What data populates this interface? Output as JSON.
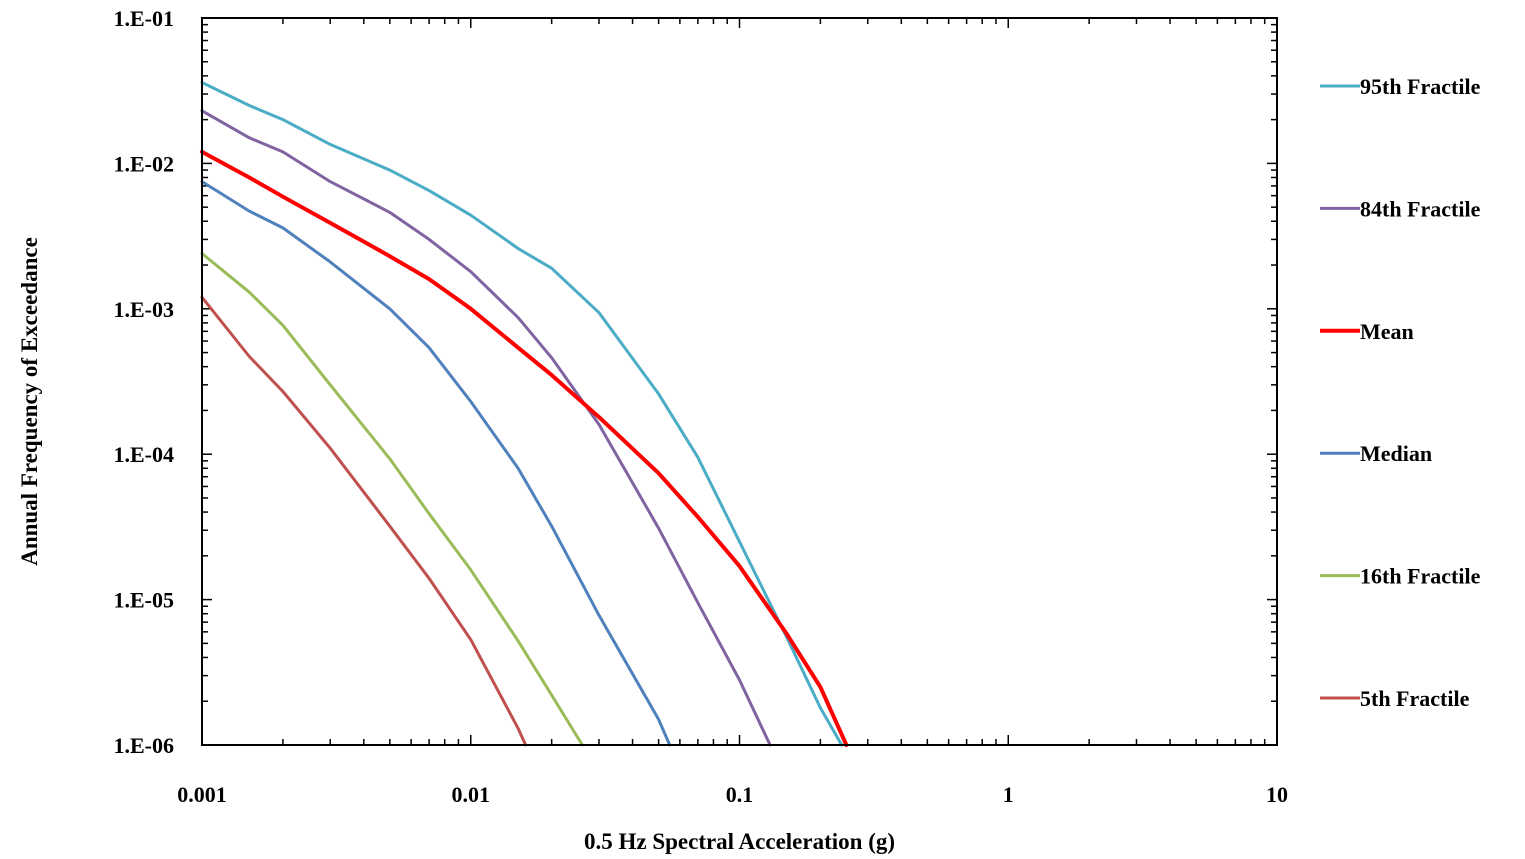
{
  "chart_data": {
    "type": "line",
    "x_scale": "log",
    "y_scale": "log",
    "xlim": [
      0.001,
      10
    ],
    "ylim": [
      1e-06,
      0.1
    ],
    "x_ticks": [
      "0.001",
      "0.01",
      "0.1",
      "1",
      "10"
    ],
    "y_ticks": [
      "1.E-06",
      "1.E-05",
      "1.E-04",
      "1.E-03",
      "1.E-02",
      "1.E-01"
    ],
    "xlabel": "0.5 Hz Spectral Acceleration (g)",
    "ylabel": "Annual Frequency of Exceedance",
    "legend_position": "right",
    "series": [
      {
        "name": "95th Fractile",
        "color": "#4BACC6",
        "width": 3,
        "x": [
          0.001,
          0.0015,
          0.002,
          0.003,
          0.005,
          0.007,
          0.01,
          0.015,
          0.02,
          0.03,
          0.05,
          0.07,
          0.1,
          0.15,
          0.2,
          0.24
        ],
        "y": [
          0.036,
          0.025,
          0.02,
          0.0135,
          0.009,
          0.0065,
          0.0044,
          0.0026,
          0.0019,
          0.00094,
          0.00026,
          9.5e-05,
          2.5e-05,
          5.5e-06,
          1.8e-06,
          1e-06
        ]
      },
      {
        "name": "84th Fractile",
        "color": "#8064A2",
        "width": 3,
        "x": [
          0.001,
          0.0015,
          0.002,
          0.003,
          0.005,
          0.007,
          0.01,
          0.015,
          0.02,
          0.03,
          0.05,
          0.07,
          0.1,
          0.13
        ],
        "y": [
          0.023,
          0.015,
          0.012,
          0.0075,
          0.0046,
          0.003,
          0.0018,
          0.00087,
          0.00046,
          0.00016,
          3.1e-05,
          9.5e-06,
          2.8e-06,
          1e-06
        ]
      },
      {
        "name": "Mean",
        "color": "#FF0000",
        "width": 4,
        "x": [
          0.001,
          0.0015,
          0.002,
          0.003,
          0.005,
          0.007,
          0.01,
          0.015,
          0.02,
          0.03,
          0.05,
          0.07,
          0.1,
          0.15,
          0.2,
          0.25
        ],
        "y": [
          0.012,
          0.008,
          0.0059,
          0.0039,
          0.0023,
          0.0016,
          0.001,
          0.00054,
          0.00035,
          0.00018,
          7.4e-05,
          3.7e-05,
          1.7e-05,
          5.8e-06,
          2.5e-06,
          1e-06
        ]
      },
      {
        "name": "Median",
        "color": "#4F81BD",
        "width": 3,
        "x": [
          0.001,
          0.0015,
          0.002,
          0.003,
          0.005,
          0.007,
          0.01,
          0.015,
          0.02,
          0.03,
          0.05,
          0.055
        ],
        "y": [
          0.0075,
          0.0047,
          0.0036,
          0.0021,
          0.001,
          0.00054,
          0.00023,
          8e-05,
          3.2e-05,
          7.8e-06,
          1.5e-06,
          1e-06
        ]
      },
      {
        "name": "16th Fractile",
        "color": "#9BBB59",
        "width": 3,
        "x": [
          0.001,
          0.0015,
          0.002,
          0.003,
          0.005,
          0.007,
          0.01,
          0.015,
          0.02,
          0.026
        ],
        "y": [
          0.0024,
          0.0013,
          0.00077,
          0.0003,
          9.3e-05,
          3.9e-05,
          1.6e-05,
          5.2e-06,
          2.2e-06,
          1e-06
        ]
      },
      {
        "name": "5th Fractile",
        "color": "#C0504D",
        "width": 3,
        "x": [
          0.001,
          0.0015,
          0.002,
          0.003,
          0.005,
          0.007,
          0.01,
          0.015,
          0.016
        ],
        "y": [
          0.0012,
          0.00047,
          0.00027,
          0.00011,
          3.2e-05,
          1.4e-05,
          5.3e-06,
          1.3e-06,
          1e-06
        ]
      }
    ]
  }
}
